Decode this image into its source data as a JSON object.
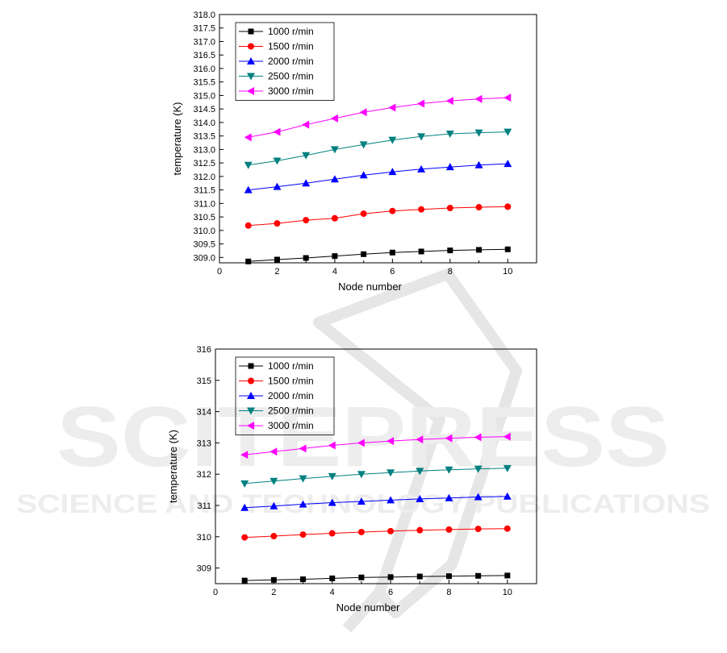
{
  "watermark": {
    "main": "SCITEPRESS",
    "sub": "SCIENCE AND TECHNOLOGY PUBLICATIONS"
  },
  "chart_data": [
    {
      "type": "line",
      "xlabel": "Node number",
      "ylabel": "temperature (K)",
      "xlim": [
        0,
        11
      ],
      "ylim": [
        308.8,
        318.0
      ],
      "xticks": [
        0,
        2,
        4,
        6,
        8,
        10
      ],
      "xtick_labels": [
        "0",
        "2",
        "4",
        "6",
        "8",
        "10"
      ],
      "yticks": [
        309.0,
        309.5,
        310.0,
        310.5,
        311.0,
        311.5,
        312.0,
        312.5,
        313.0,
        313.5,
        314.0,
        314.5,
        315.0,
        315.5,
        316.0,
        316.5,
        317.0,
        317.5,
        318.0
      ],
      "ytick_labels": [
        "309.0",
        "309.5",
        "310.0",
        "310.5",
        "311.0",
        "311.5",
        "312.0",
        "312.5",
        "313.0",
        "313.5",
        "314.0",
        "314.5",
        "315.0",
        "315.5",
        "316.0",
        "316.5",
        "317.0",
        "317.5",
        "318.0"
      ],
      "legend_position": "top-left",
      "grid": false,
      "x": [
        1,
        2,
        3,
        4,
        5,
        6,
        7,
        8,
        9,
        10
      ],
      "series": [
        {
          "name": "1000 r/min",
          "marker": "square",
          "color": "#000000",
          "values": [
            308.85,
            308.92,
            308.98,
            309.05,
            309.12,
            309.18,
            309.22,
            309.26,
            309.28,
            309.3
          ]
        },
        {
          "name": "1500 r/min",
          "marker": "circle",
          "color": "#ff0000",
          "values": [
            310.18,
            310.26,
            310.38,
            310.45,
            310.62,
            310.72,
            310.78,
            310.83,
            310.86,
            310.88
          ]
        },
        {
          "name": "2000 r/min",
          "marker": "triangle-up",
          "color": "#0000ff",
          "values": [
            311.5,
            311.62,
            311.75,
            311.9,
            312.05,
            312.17,
            312.27,
            312.35,
            312.42,
            312.47
          ]
        },
        {
          "name": "2500 r/min",
          "marker": "triangle-down",
          "color": "#008080",
          "values": [
            312.42,
            312.58,
            312.78,
            313.0,
            313.18,
            313.35,
            313.48,
            313.58,
            313.62,
            313.65
          ]
        },
        {
          "name": "3000 r/min",
          "marker": "triangle-left",
          "color": "#ff00ff",
          "values": [
            313.45,
            313.65,
            313.92,
            314.15,
            314.38,
            314.55,
            314.7,
            314.8,
            314.87,
            314.92
          ]
        }
      ]
    },
    {
      "type": "line",
      "xlabel": "Node number",
      "ylabel": "temperature (K)",
      "xlim": [
        0,
        11
      ],
      "ylim": [
        308.5,
        316.0
      ],
      "xticks": [
        0,
        2,
        4,
        6,
        8,
        10
      ],
      "xtick_labels": [
        "0",
        "2",
        "4",
        "6",
        "8",
        "10"
      ],
      "yticks": [
        309,
        310,
        311,
        312,
        313,
        314,
        315,
        316
      ],
      "ytick_labels": [
        "309",
        "310",
        "311",
        "312",
        "313",
        "314",
        "315",
        "316"
      ],
      "legend_position": "top-left",
      "grid": false,
      "x": [
        1,
        2,
        3,
        4,
        5,
        6,
        7,
        8,
        9,
        10
      ],
      "series": [
        {
          "name": "1000 r/min",
          "marker": "square",
          "color": "#000000",
          "values": [
            308.6,
            308.62,
            308.64,
            308.67,
            308.7,
            308.71,
            308.73,
            308.74,
            308.75,
            308.76
          ]
        },
        {
          "name": "1500 r/min",
          "marker": "circle",
          "color": "#ff0000",
          "values": [
            309.98,
            310.02,
            310.07,
            310.11,
            310.15,
            310.18,
            310.21,
            310.23,
            310.25,
            310.26
          ]
        },
        {
          "name": "2000 r/min",
          "marker": "triangle-up",
          "color": "#0000ff",
          "values": [
            310.93,
            310.98,
            311.04,
            311.09,
            311.13,
            311.17,
            311.21,
            311.24,
            311.27,
            311.29
          ]
        },
        {
          "name": "2500 r/min",
          "marker": "triangle-down",
          "color": "#008080",
          "values": [
            311.7,
            311.78,
            311.86,
            311.93,
            312.0,
            312.05,
            312.1,
            312.14,
            312.17,
            312.19
          ]
        },
        {
          "name": "3000 r/min",
          "marker": "triangle-left",
          "color": "#ff00ff",
          "values": [
            312.62,
            312.72,
            312.82,
            312.92,
            313.0,
            313.06,
            313.11,
            313.15,
            313.18,
            313.2
          ]
        }
      ]
    }
  ]
}
